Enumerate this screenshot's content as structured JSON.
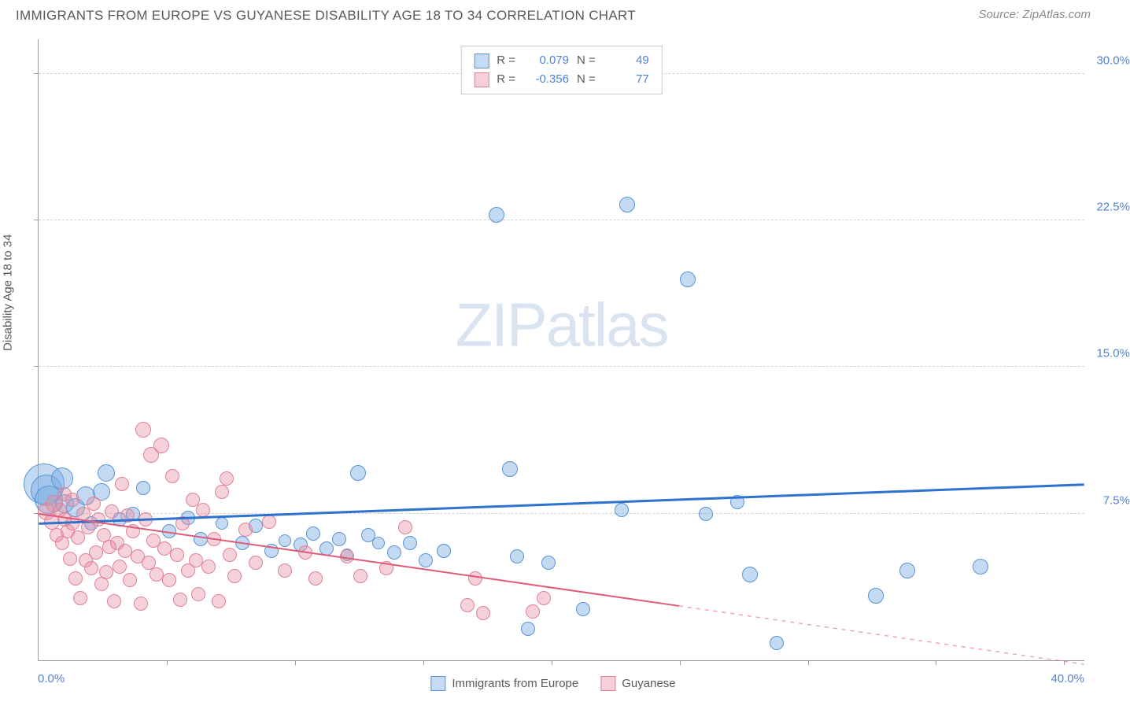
{
  "title": "IMMIGRANTS FROM EUROPE VS GUYANESE DISABILITY AGE 18 TO 34 CORRELATION CHART",
  "source": "Source: ZipAtlas.com",
  "y_label": "Disability Age 18 to 34",
  "watermark_bold": "ZIP",
  "watermark_light": "atlas",
  "chart": {
    "type": "scatter",
    "x_min": 0.0,
    "x_max": 40.0,
    "y_min": 0.0,
    "y_max": 31.8,
    "y_ticks": [
      7.5,
      15.0,
      22.5,
      30.0
    ],
    "y_tick_labels": [
      "7.5%",
      "15.0%",
      "22.5%",
      "30.0%"
    ],
    "x_tick_positions": [
      4.9,
      9.8,
      14.7,
      19.6,
      24.5,
      29.4,
      34.3,
      39.2
    ],
    "x_zero_label": "0.0%",
    "x_max_label": "40.0%",
    "grid_color": "#d3d3d3",
    "axis_color": "#9a9a9a",
    "background_color": "#ffffff",
    "series": [
      {
        "key": "europe",
        "label": "Immigrants from Europe",
        "color_fill": "rgba(122,173,226,0.45)",
        "color_stroke": "#5a94d6",
        "R": "0.079",
        "N": "49",
        "trend": {
          "y_at_xmin": 7.0,
          "y_at_xmax": 9.0,
          "solid_until_x": 40.0,
          "stroke": "#2d72cf",
          "width": 3
        },
        "points": [
          {
            "x": 0.2,
            "y": 9.0,
            "r": 26
          },
          {
            "x": 0.3,
            "y": 8.7,
            "r": 20
          },
          {
            "x": 0.4,
            "y": 8.2,
            "r": 18
          },
          {
            "x": 0.9,
            "y": 9.3,
            "r": 14
          },
          {
            "x": 1.0,
            "y": 8.0,
            "r": 12
          },
          {
            "x": 1.4,
            "y": 7.8,
            "r": 12
          },
          {
            "x": 1.8,
            "y": 8.4,
            "r": 12
          },
          {
            "x": 2.0,
            "y": 7.0,
            "r": 9
          },
          {
            "x": 2.4,
            "y": 8.6,
            "r": 11
          },
          {
            "x": 2.6,
            "y": 9.6,
            "r": 11
          },
          {
            "x": 3.1,
            "y": 7.2,
            "r": 9
          },
          {
            "x": 3.6,
            "y": 7.5,
            "r": 9
          },
          {
            "x": 4.0,
            "y": 8.8,
            "r": 9
          },
          {
            "x": 5.0,
            "y": 6.6,
            "r": 9
          },
          {
            "x": 5.7,
            "y": 7.3,
            "r": 9
          },
          {
            "x": 6.2,
            "y": 6.2,
            "r": 9
          },
          {
            "x": 7.0,
            "y": 7.0,
            "r": 8
          },
          {
            "x": 7.8,
            "y": 6.0,
            "r": 9
          },
          {
            "x": 8.3,
            "y": 6.9,
            "r": 9
          },
          {
            "x": 8.9,
            "y": 5.6,
            "r": 9
          },
          {
            "x": 9.4,
            "y": 6.1,
            "r": 8
          },
          {
            "x": 10.0,
            "y": 5.9,
            "r": 9
          },
          {
            "x": 10.5,
            "y": 6.5,
            "r": 9
          },
          {
            "x": 11.0,
            "y": 5.7,
            "r": 9
          },
          {
            "x": 11.5,
            "y": 6.2,
            "r": 9
          },
          {
            "x": 11.8,
            "y": 5.4,
            "r": 8
          },
          {
            "x": 12.2,
            "y": 9.6,
            "r": 10
          },
          {
            "x": 12.6,
            "y": 6.4,
            "r": 9
          },
          {
            "x": 13.0,
            "y": 6.0,
            "r": 8
          },
          {
            "x": 13.6,
            "y": 5.5,
            "r": 9
          },
          {
            "x": 14.2,
            "y": 6.0,
            "r": 9
          },
          {
            "x": 14.8,
            "y": 5.1,
            "r": 9
          },
          {
            "x": 15.5,
            "y": 5.6,
            "r": 9
          },
          {
            "x": 17.5,
            "y": 22.8,
            "r": 10
          },
          {
            "x": 18.0,
            "y": 9.8,
            "r": 10
          },
          {
            "x": 18.3,
            "y": 5.3,
            "r": 9
          },
          {
            "x": 18.7,
            "y": 1.6,
            "r": 9
          },
          {
            "x": 19.5,
            "y": 5.0,
            "r": 9
          },
          {
            "x": 20.8,
            "y": 2.6,
            "r": 9
          },
          {
            "x": 22.5,
            "y": 23.3,
            "r": 10
          },
          {
            "x": 22.3,
            "y": 7.7,
            "r": 9
          },
          {
            "x": 24.8,
            "y": 19.5,
            "r": 10
          },
          {
            "x": 25.5,
            "y": 7.5,
            "r": 9
          },
          {
            "x": 26.7,
            "y": 8.1,
            "r": 9
          },
          {
            "x": 27.2,
            "y": 4.4,
            "r": 10
          },
          {
            "x": 28.2,
            "y": 0.9,
            "r": 9
          },
          {
            "x": 32.0,
            "y": 3.3,
            "r": 10
          },
          {
            "x": 33.2,
            "y": 4.6,
            "r": 10
          },
          {
            "x": 36.0,
            "y": 4.8,
            "r": 10
          }
        ]
      },
      {
        "key": "guyanese",
        "label": "Guyanese",
        "color_fill": "rgba(231,140,160,0.40)",
        "color_stroke": "#e18197",
        "R": "-0.356",
        "N": "77",
        "trend": {
          "y_at_xmin": 7.5,
          "y_at_xmax": -0.2,
          "solid_until_x": 24.5,
          "stroke": "#e05a78",
          "width": 2
        },
        "points": [
          {
            "x": 0.3,
            "y": 7.6,
            "r": 11
          },
          {
            "x": 0.5,
            "y": 7.1,
            "r": 10
          },
          {
            "x": 0.6,
            "y": 8.0,
            "r": 11
          },
          {
            "x": 0.7,
            "y": 6.4,
            "r": 9
          },
          {
            "x": 0.8,
            "y": 7.7,
            "r": 9
          },
          {
            "x": 0.9,
            "y": 6.0,
            "r": 9
          },
          {
            "x": 1.0,
            "y": 7.2,
            "r": 9
          },
          {
            "x": 1.0,
            "y": 8.5,
            "r": 9
          },
          {
            "x": 1.1,
            "y": 6.6,
            "r": 9
          },
          {
            "x": 1.2,
            "y": 5.2,
            "r": 9
          },
          {
            "x": 1.3,
            "y": 7.0,
            "r": 9
          },
          {
            "x": 1.3,
            "y": 8.2,
            "r": 9
          },
          {
            "x": 1.4,
            "y": 4.2,
            "r": 9
          },
          {
            "x": 1.5,
            "y": 6.3,
            "r": 9
          },
          {
            "x": 1.6,
            "y": 3.2,
            "r": 9
          },
          {
            "x": 1.7,
            "y": 7.5,
            "r": 9
          },
          {
            "x": 1.8,
            "y": 5.1,
            "r": 9
          },
          {
            "x": 1.9,
            "y": 6.8,
            "r": 9
          },
          {
            "x": 2.0,
            "y": 4.7,
            "r": 9
          },
          {
            "x": 2.1,
            "y": 8.0,
            "r": 9
          },
          {
            "x": 2.2,
            "y": 5.5,
            "r": 9
          },
          {
            "x": 2.3,
            "y": 7.2,
            "r": 9
          },
          {
            "x": 2.4,
            "y": 3.9,
            "r": 9
          },
          {
            "x": 2.5,
            "y": 6.4,
            "r": 9
          },
          {
            "x": 2.6,
            "y": 4.5,
            "r": 9
          },
          {
            "x": 2.7,
            "y": 5.8,
            "r": 9
          },
          {
            "x": 2.8,
            "y": 7.6,
            "r": 9
          },
          {
            "x": 2.9,
            "y": 3.0,
            "r": 9
          },
          {
            "x": 3.0,
            "y": 6.0,
            "r": 9
          },
          {
            "x": 3.1,
            "y": 4.8,
            "r": 9
          },
          {
            "x": 3.2,
            "y": 9.0,
            "r": 9
          },
          {
            "x": 3.3,
            "y": 5.6,
            "r": 9
          },
          {
            "x": 3.4,
            "y": 7.4,
            "r": 9
          },
          {
            "x": 3.5,
            "y": 4.1,
            "r": 9
          },
          {
            "x": 3.6,
            "y": 6.6,
            "r": 9
          },
          {
            "x": 3.8,
            "y": 5.3,
            "r": 9
          },
          {
            "x": 3.9,
            "y": 2.9,
            "r": 9
          },
          {
            "x": 4.0,
            "y": 11.8,
            "r": 10
          },
          {
            "x": 4.1,
            "y": 7.2,
            "r": 9
          },
          {
            "x": 4.2,
            "y": 5.0,
            "r": 9
          },
          {
            "x": 4.3,
            "y": 10.5,
            "r": 10
          },
          {
            "x": 4.4,
            "y": 6.1,
            "r": 9
          },
          {
            "x": 4.5,
            "y": 4.4,
            "r": 9
          },
          {
            "x": 4.7,
            "y": 11.0,
            "r": 10
          },
          {
            "x": 4.8,
            "y": 5.7,
            "r": 9
          },
          {
            "x": 5.0,
            "y": 4.1,
            "r": 9
          },
          {
            "x": 5.1,
            "y": 9.4,
            "r": 9
          },
          {
            "x": 5.3,
            "y": 5.4,
            "r": 9
          },
          {
            "x": 5.4,
            "y": 3.1,
            "r": 9
          },
          {
            "x": 5.5,
            "y": 7.0,
            "r": 9
          },
          {
            "x": 5.7,
            "y": 4.6,
            "r": 9
          },
          {
            "x": 5.9,
            "y": 8.2,
            "r": 9
          },
          {
            "x": 6.0,
            "y": 5.1,
            "r": 9
          },
          {
            "x": 6.1,
            "y": 3.4,
            "r": 9
          },
          {
            "x": 6.3,
            "y": 7.7,
            "r": 9
          },
          {
            "x": 6.5,
            "y": 4.8,
            "r": 9
          },
          {
            "x": 6.7,
            "y": 6.2,
            "r": 9
          },
          {
            "x": 6.9,
            "y": 3.0,
            "r": 9
          },
          {
            "x": 7.0,
            "y": 8.6,
            "r": 9
          },
          {
            "x": 7.2,
            "y": 9.3,
            "r": 9
          },
          {
            "x": 7.3,
            "y": 5.4,
            "r": 9
          },
          {
            "x": 7.5,
            "y": 4.3,
            "r": 9
          },
          {
            "x": 7.9,
            "y": 6.7,
            "r": 9
          },
          {
            "x": 8.3,
            "y": 5.0,
            "r": 9
          },
          {
            "x": 8.8,
            "y": 7.1,
            "r": 9
          },
          {
            "x": 9.4,
            "y": 4.6,
            "r": 9
          },
          {
            "x": 10.2,
            "y": 5.5,
            "r": 9
          },
          {
            "x": 10.6,
            "y": 4.2,
            "r": 9
          },
          {
            "x": 11.8,
            "y": 5.3,
            "r": 9
          },
          {
            "x": 12.3,
            "y": 4.3,
            "r": 9
          },
          {
            "x": 13.3,
            "y": 4.7,
            "r": 9
          },
          {
            "x": 14.0,
            "y": 6.8,
            "r": 9
          },
          {
            "x": 16.4,
            "y": 2.8,
            "r": 9
          },
          {
            "x": 16.7,
            "y": 4.2,
            "r": 9
          },
          {
            "x": 17.0,
            "y": 2.4,
            "r": 9
          },
          {
            "x": 18.9,
            "y": 2.5,
            "r": 9
          },
          {
            "x": 19.3,
            "y": 3.2,
            "r": 9
          }
        ]
      }
    ]
  },
  "stats_legend": {
    "r_label": "R =",
    "n_label": "N ="
  }
}
